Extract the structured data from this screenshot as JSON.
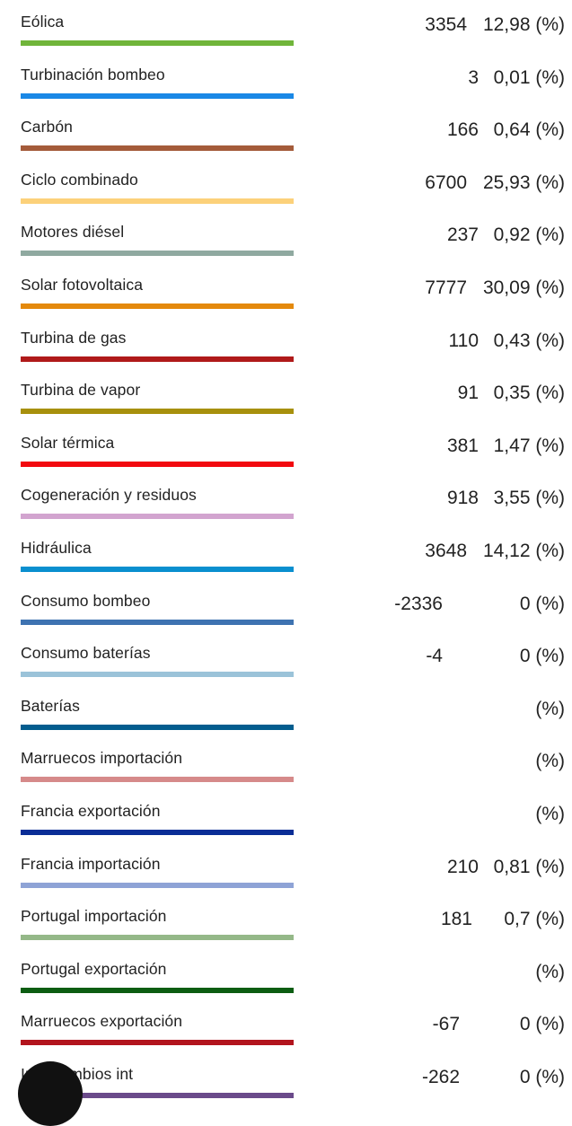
{
  "legend": {
    "rows": [
      {
        "label": "Eólica",
        "value": "3354",
        "percent": "12,98 (%)",
        "color": "#70b53a",
        "vpad": 0
      },
      {
        "label": "Turbinación bombeo",
        "value": "3",
        "percent": "0,01 (%)",
        "color": "#1a88e6",
        "vpad": 13
      },
      {
        "label": "Carbón",
        "value": "166",
        "percent": "0,64 (%)",
        "color": "#a45b3a",
        "vpad": 13
      },
      {
        "label": "Ciclo combinado",
        "value": "6700",
        "percent": "25,93 (%)",
        "color": "#fcd17a",
        "vpad": 0
      },
      {
        "label": "Motores diésel",
        "value": "237",
        "percent": "0,92 (%)",
        "color": "#8fa9a0",
        "vpad": 13
      },
      {
        "label": "Solar fotovoltaica",
        "value": "7777",
        "percent": "30,09 (%)",
        "color": "#e4890c",
        "vpad": 0
      },
      {
        "label": "Turbina de gas",
        "value": "110",
        "percent": "0,43 (%)",
        "color": "#b01a1a",
        "vpad": 13
      },
      {
        "label": "Turbina de vapor",
        "value": "91",
        "percent": "0,35 (%)",
        "color": "#a7900d",
        "vpad": 13
      },
      {
        "label": "Solar térmica",
        "value": "381",
        "percent": "1,47 (%)",
        "color": "#f2090f",
        "vpad": 13
      },
      {
        "label": "Cogeneración y residuos",
        "value": "918",
        "percent": "3,55 (%)",
        "color": "#d2a4cf",
        "vpad": 13
      },
      {
        "label": "Hidráulica",
        "value": "3648",
        "percent": "14,12 (%)",
        "color": "#0a8fcf",
        "vpad": 0
      },
      {
        "label": "Consumo bombeo",
        "value": "-2336",
        "percent": "0 (%)",
        "color": "#3e73b1",
        "vpad": -27
      },
      {
        "label": "Consumo baterías",
        "value": "-4",
        "percent": "0 (%)",
        "color": "#9bc3d9",
        "vpad": -27
      },
      {
        "label": "Baterías",
        "value": "",
        "percent": "(%)",
        "color": "#035d8e",
        "vpad": 0
      },
      {
        "label": "Marruecos importación",
        "value": "",
        "percent": "(%)",
        "color": "#d68a8a",
        "vpad": 0
      },
      {
        "label": "Francia exportación",
        "value": "",
        "percent": "(%)",
        "color": "#0a2d96",
        "vpad": 0
      },
      {
        "label": "Francia importación",
        "value": "210",
        "percent": "0,81 (%)",
        "color": "#8ea3d6",
        "vpad": 13
      },
      {
        "label": "Portugal importación",
        "value": "181",
        "percent": "0,7 (%)",
        "color": "#94b888",
        "vpad": 6
      },
      {
        "label": "Portugal exportación",
        "value": "",
        "percent": "(%)",
        "color": "#0c5d12",
        "vpad": 0
      },
      {
        "label": "Marruecos exportación",
        "value": "-67",
        "percent": "0 (%)",
        "color": "#b2141d",
        "vpad": -8
      },
      {
        "label": "Intercambios int",
        "value": "-262",
        "percent": "0 (%)",
        "color": "#6a4a8a",
        "vpad": -8
      }
    ]
  }
}
